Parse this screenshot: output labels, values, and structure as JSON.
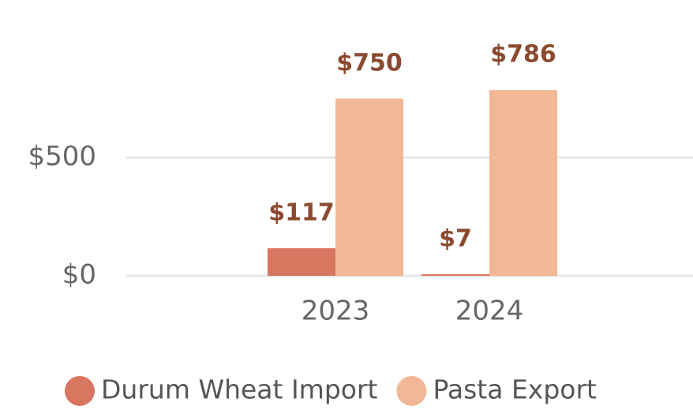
{
  "chart_data": {
    "type": "bar",
    "categories": [
      "2023",
      "2024"
    ],
    "series": [
      {
        "name": "Durum Wheat Import",
        "color": "#d97660",
        "values": [
          117,
          7
        ],
        "value_labels": [
          "$117",
          "$7"
        ]
      },
      {
        "name": "Pasta Export",
        "color": "#f2b896",
        "values": [
          750,
          786
        ],
        "value_labels": [
          "$750",
          "$786"
        ]
      }
    ],
    "ylim": [
      0,
      1000
    ],
    "yticks": [
      {
        "value": 0,
        "label": "$0"
      },
      {
        "value": 500,
        "label": "$500"
      }
    ],
    "grid": true,
    "legend": "bottom"
  }
}
